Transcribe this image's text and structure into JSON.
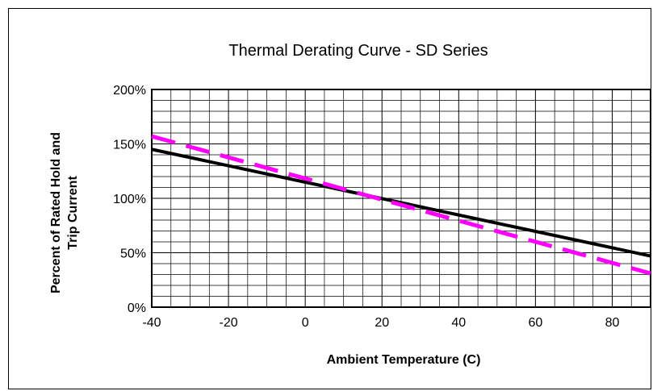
{
  "chart_data": {
    "type": "line",
    "title": "Thermal Derating Curve - SD Series",
    "xlabel": "Ambient Temperature (C)",
    "ylabel_lines": [
      "Percent of Rated Hold  and",
      "Trip Current"
    ],
    "xlim": [
      -40,
      90
    ],
    "ylim": [
      0,
      200
    ],
    "x_ticks": [
      -40,
      -20,
      0,
      20,
      40,
      60,
      80
    ],
    "x_tick_labels": [
      "-40",
      "-20",
      "0",
      "20",
      "40",
      "60",
      "80"
    ],
    "y_ticks": [
      0,
      50,
      100,
      150,
      200
    ],
    "y_tick_labels": [
      "0%",
      "50%",
      "100%",
      "150%",
      "200%"
    ],
    "grid": true,
    "grid_minor_x_step": 5,
    "grid_minor_y_step": 10,
    "legend": "none",
    "series": [
      {
        "style": "solid",
        "color": "#000000",
        "x": [
          -40,
          90
        ],
        "y": [
          145,
          47
        ]
      },
      {
        "style": "dashed",
        "color": "#ff00ff",
        "x": [
          -40,
          90
        ],
        "y": [
          157,
          31
        ]
      }
    ]
  }
}
